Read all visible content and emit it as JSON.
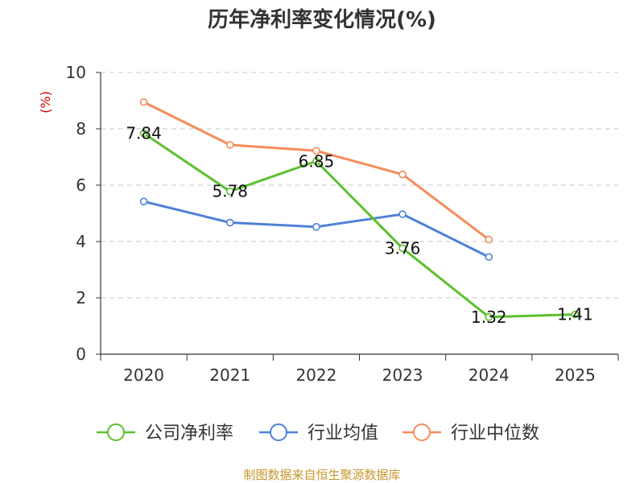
{
  "chart_data": {
    "type": "line",
    "title": "历年净利率变化情况(%)",
    "ylabel": "(%)",
    "xlabel": "",
    "categories": [
      "2020",
      "2021",
      "2022",
      "2023",
      "2024",
      "2025"
    ],
    "ylim": [
      0,
      10
    ],
    "yticks": [
      "0",
      "2",
      "4",
      "6",
      "8",
      "10"
    ],
    "grid": true,
    "legend_position": "bottom",
    "series": [
      {
        "name": "公司净利率",
        "color": "#5cc02f",
        "values": [
          7.84,
          5.78,
          6.85,
          3.76,
          1.32,
          1.41
        ],
        "labels": [
          "7.84",
          "5.78",
          "6.85",
          "3.76",
          "1.32",
          "1.41"
        ]
      },
      {
        "name": "行业均值",
        "color": "#4e81d8",
        "values": [
          5.42,
          4.67,
          4.52,
          4.97,
          3.45,
          null
        ]
      },
      {
        "name": "行业中位数",
        "color": "#f58c5a",
        "values": [
          8.95,
          7.43,
          7.22,
          6.38,
          4.07,
          null
        ]
      }
    ],
    "source": "制图数据来自恒生聚源数据库"
  }
}
